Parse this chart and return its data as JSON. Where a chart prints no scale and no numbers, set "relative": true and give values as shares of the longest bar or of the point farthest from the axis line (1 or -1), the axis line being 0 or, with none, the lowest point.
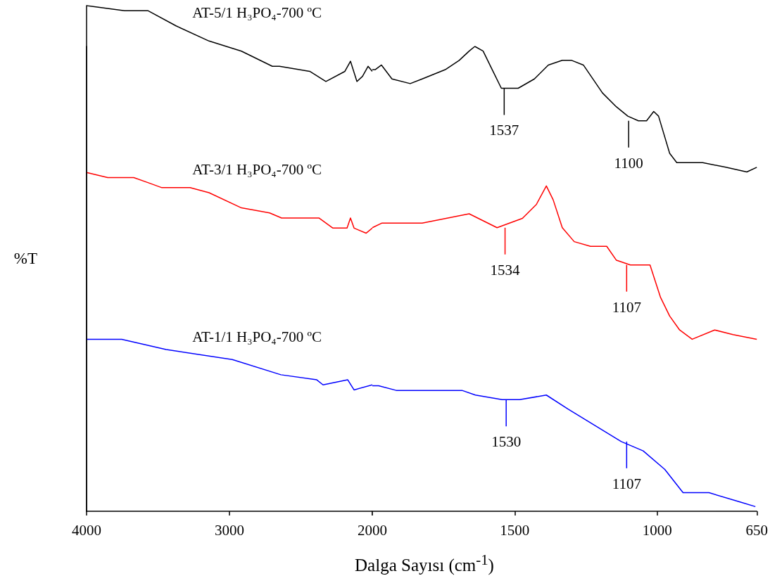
{
  "chart_data": [
    {
      "type": "line",
      "relative": true,
      "ylabel": "%T",
      "xlim": [
        4000,
        2000
      ],
      "xticks": [
        4000,
        3000,
        {
          "value": 2000,
          "label": null
        }
      ],
      "tick_labels": "x",
      "series": [
        {
          "name": "AT-5/1 H₃PO₄-700 ºC",
          "color": "#000000",
          "x": [
            4000,
            3734,
            3645,
            3571,
            3374,
            3143,
            2916,
            2700,
            2650,
            2438,
            2325,
            2192,
            2153,
            2108,
            2069,
            2030,
            2000
          ],
          "values": [
            1.0,
            0.99,
            0.99,
            0.99,
            0.96,
            0.93,
            0.91,
            0.88,
            0.88,
            0.87,
            0.85,
            0.87,
            0.89,
            0.85,
            0.86,
            0.88,
            0.87
          ]
        },
        {
          "name": "AT-3/1 H₃PO₄-700 ºC",
          "color": "#ff0000",
          "x": [
            4000,
            3852,
            3670,
            3571,
            3473,
            3374,
            3276,
            3143,
            2916,
            2719,
            2635,
            2374,
            2276,
            2177,
            2153,
            2128,
            2044,
            2000
          ],
          "values": [
            0.67,
            0.66,
            0.66,
            0.65,
            0.64,
            0.64,
            0.64,
            0.63,
            0.6,
            0.59,
            0.58,
            0.58,
            0.56,
            0.56,
            0.58,
            0.56,
            0.55,
            0.56
          ]
        },
        {
          "name": "AT-1/1 H₃PO₄-700 ºC",
          "color": "#0000ff",
          "x": [
            4000,
            3754,
            3443,
            2980,
            2640,
            2389,
            2345,
            2172,
            2128,
            2000
          ],
          "values": [
            0.34,
            0.34,
            0.32,
            0.3,
            0.27,
            0.26,
            0.25,
            0.26,
            0.24,
            0.25
          ]
        }
      ]
    },
    {
      "type": "line",
      "relative": true,
      "xlabel": "Dalga Sayısı (cm$^{-1}$)",
      "xlim": [
        2000,
        650
      ],
      "xticks": [
        2000,
        1500,
        1000,
        650
      ],
      "tick_labels": "x",
      "annotations": [
        {
          "text": "1537",
          "x": 1537,
          "y": 0.91
        },
        {
          "text": "1100",
          "x": 1100,
          "y": 0.84
        },
        {
          "text": "1534",
          "x": 1534,
          "y": 0.61
        },
        {
          "text": "1107",
          "x": 1107,
          "y": 0.53
        },
        {
          "text": "1530",
          "x": 1530,
          "y": 0.24
        },
        {
          "text": "1107",
          "x": 1107,
          "y": 0.15
        }
      ],
      "series": [
        {
          "color": "#000000",
          "x": [
            2000,
            1990,
            1968,
            1931,
            1867,
            1825,
            1744,
            1695,
            1660,
            1640,
            1611,
            1579,
            1547,
            1530,
            1488,
            1431,
            1382,
            1333,
            1300,
            1259,
            1192,
            1143,
            1103,
            1066,
            1037,
            1012,
            995,
            956,
            931,
            840,
            759,
            685,
            650
          ],
          "values": [
            0.95,
            0.95,
            0.96,
            0.93,
            0.92,
            0.93,
            0.95,
            0.97,
            0.99,
            1.0,
            0.99,
            0.95,
            0.91,
            0.91,
            0.91,
            0.93,
            0.96,
            0.97,
            0.97,
            0.96,
            0.9,
            0.87,
            0.85,
            0.84,
            0.84,
            0.86,
            0.85,
            0.77,
            0.75,
            0.75,
            0.74,
            0.73,
            0.74
          ]
        },
        {
          "color": "#ff0000",
          "x": [
            2000,
            1966,
            1825,
            1660,
            1562,
            1473,
            1424,
            1389,
            1365,
            1333,
            1291,
            1234,
            1177,
            1143,
            1094,
            1044,
            1025,
            988,
            956,
            921,
            877,
            798,
            734,
            650
          ],
          "values": [
            0.61,
            0.62,
            0.62,
            0.64,
            0.61,
            0.63,
            0.66,
            0.7,
            0.67,
            0.61,
            0.58,
            0.57,
            0.57,
            0.54,
            0.53,
            0.53,
            0.53,
            0.46,
            0.42,
            0.39,
            0.37,
            0.39,
            0.38,
            0.37
          ]
        },
        {
          "color": "#0000ff",
          "x": [
            2000,
            1978,
            1916,
            1685,
            1638,
            1544,
            1483,
            1389,
            1313,
            1126,
            1049,
            973,
            909,
            818,
            709,
            655
          ],
          "values": [
            0.27,
            0.27,
            0.26,
            0.26,
            0.25,
            0.24,
            0.24,
            0.25,
            0.22,
            0.15,
            0.13,
            0.09,
            0.04,
            0.04,
            0.02,
            0.01
          ]
        }
      ]
    }
  ]
}
